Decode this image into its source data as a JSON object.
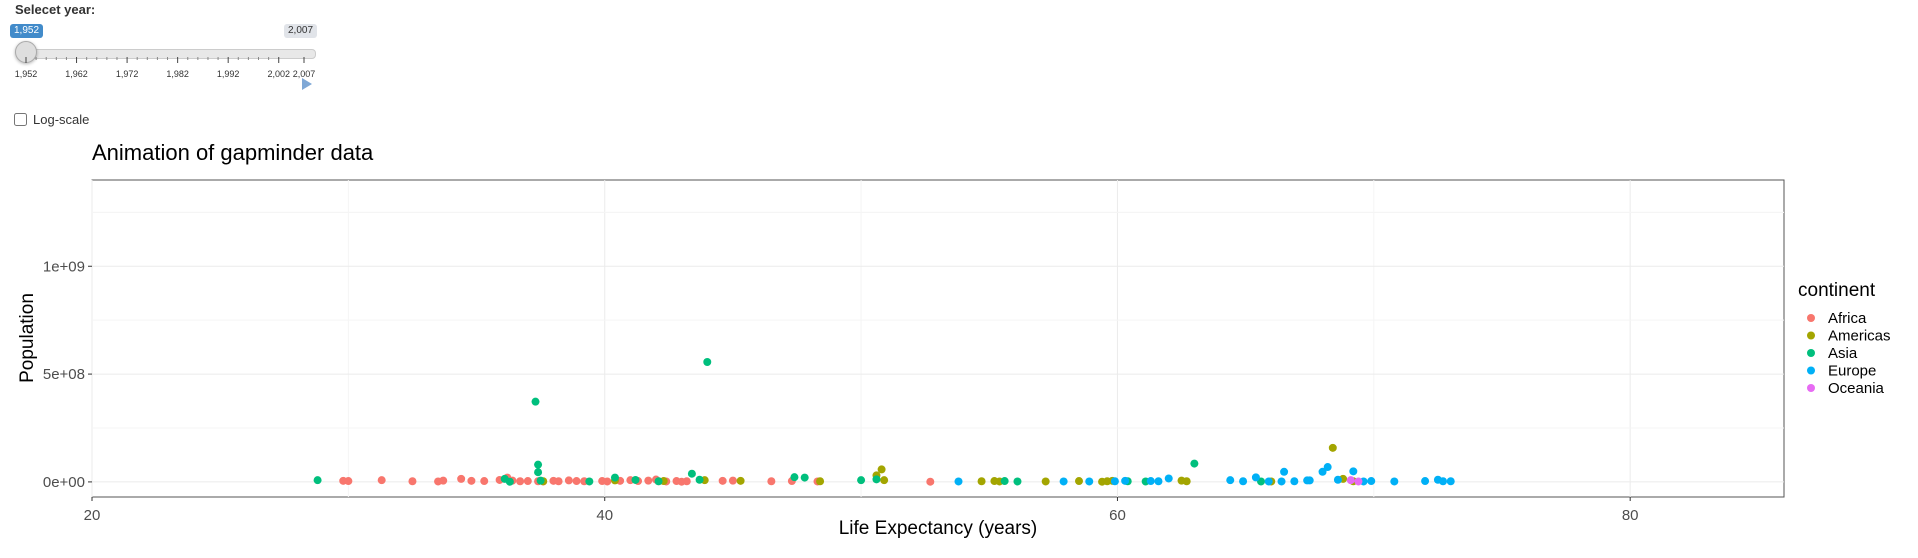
{
  "slider": {
    "label": "Selecet year:",
    "from_value": "1,952",
    "max_value": "2,007",
    "ticks": [
      "1,952",
      "1,962",
      "1,972",
      "1,982",
      "1,992",
      "2,002",
      "2,007"
    ],
    "tick_years": [
      1952,
      1962,
      1972,
      1982,
      1992,
      2002,
      2007
    ],
    "min": 1952,
    "max": 2007,
    "current": 1952,
    "accent": "#428bca"
  },
  "logscale": {
    "label": "Log-scale",
    "checked": false
  },
  "colors": {
    "Africa": "#F8766D",
    "Americas": "#A3A500",
    "Asia": "#00BF7D",
    "Europe": "#00B0F6",
    "Oceania": "#E76BF3"
  },
  "chart_data": {
    "type": "scatter",
    "title": "Animation of gapminder data",
    "xlabel": "Life Expectancy (years)",
    "ylabel": "Population",
    "xlim": [
      20,
      86
    ],
    "ylim": [
      -70000000,
      1400000000
    ],
    "xticks": [
      20,
      40,
      60,
      80
    ],
    "xtick_labels": [
      "20",
      "40",
      "60",
      "80"
    ],
    "yticks": [
      0,
      500000000,
      1000000000
    ],
    "ytick_labels": [
      "0e+00",
      "5e+08",
      "1e+09"
    ],
    "grid": true,
    "legend": {
      "title": "continent",
      "position": "right"
    },
    "series": [
      {
        "name": "Africa",
        "points": [
          [
            29.8,
            5
          ],
          [
            30.0,
            4
          ],
          [
            31.3,
            8
          ],
          [
            32.5,
            3
          ],
          [
            33.5,
            2
          ],
          [
            33.7,
            6
          ],
          [
            34.4,
            14
          ],
          [
            34.8,
            5
          ],
          [
            35.3,
            4
          ],
          [
            35.9,
            9
          ],
          [
            36.2,
            20
          ],
          [
            36.4,
            6
          ],
          [
            36.7,
            3
          ],
          [
            37.0,
            4
          ],
          [
            37.4,
            3
          ],
          [
            37.6,
            2
          ],
          [
            38.0,
            5
          ],
          [
            38.2,
            3
          ],
          [
            38.6,
            7
          ],
          [
            38.9,
            4
          ],
          [
            39.2,
            3
          ],
          [
            39.9,
            4
          ],
          [
            40.1,
            2
          ],
          [
            40.6,
            5
          ],
          [
            41.0,
            8
          ],
          [
            41.3,
            4
          ],
          [
            41.7,
            6
          ],
          [
            42.0,
            11
          ],
          [
            42.1,
            3
          ],
          [
            42.4,
            2
          ],
          [
            42.8,
            4
          ],
          [
            43.0,
            1
          ],
          [
            43.2,
            3
          ],
          [
            44.6,
            5
          ],
          [
            45.0,
            6
          ],
          [
            46.5,
            3
          ],
          [
            47.3,
            4
          ],
          [
            48.3,
            2
          ],
          [
            52.7,
            1
          ]
        ]
      },
      {
        "name": "Americas",
        "points": [
          [
            37.6,
            3
          ],
          [
            40.4,
            7
          ],
          [
            42.3,
            4
          ],
          [
            43.9,
            8
          ],
          [
            45.3,
            5
          ],
          [
            48.4,
            3
          ],
          [
            50.6,
            30
          ],
          [
            50.8,
            58
          ],
          [
            50.9,
            8
          ],
          [
            54.7,
            3
          ],
          [
            55.2,
            4
          ],
          [
            55.4,
            2
          ],
          [
            57.2,
            2
          ],
          [
            58.5,
            4
          ],
          [
            59.4,
            1
          ],
          [
            59.6,
            3
          ],
          [
            59.8,
            5
          ],
          [
            62.5,
            6
          ],
          [
            62.7,
            3
          ],
          [
            66.0,
            2
          ],
          [
            68.4,
            158
          ],
          [
            68.8,
            14
          ],
          [
            69.2,
            3
          ]
        ]
      },
      {
        "name": "Asia",
        "points": [
          [
            28.8,
            8
          ],
          [
            36.1,
            14
          ],
          [
            36.3,
            1
          ],
          [
            37.3,
            372
          ],
          [
            37.4,
            80
          ],
          [
            37.4,
            45
          ],
          [
            37.5,
            6
          ],
          [
            39.4,
            2
          ],
          [
            40.4,
            20
          ],
          [
            41.2,
            9
          ],
          [
            42.1,
            3
          ],
          [
            43.4,
            38
          ],
          [
            43.7,
            10
          ],
          [
            44.0,
            556
          ],
          [
            47.4,
            22
          ],
          [
            47.8,
            20
          ],
          [
            50.0,
            8
          ],
          [
            50.6,
            12
          ],
          [
            55.6,
            4
          ],
          [
            56.1,
            2
          ],
          [
            60.4,
            3
          ],
          [
            61.1,
            2
          ],
          [
            63.0,
            85
          ],
          [
            65.6,
            2
          ]
        ]
      },
      {
        "name": "Europe",
        "points": [
          [
            53.8,
            2
          ],
          [
            57.9,
            2
          ],
          [
            58.9,
            2
          ],
          [
            59.9,
            3
          ],
          [
            60.3,
            5
          ],
          [
            61.3,
            4
          ],
          [
            61.6,
            3
          ],
          [
            62.0,
            16
          ],
          [
            64.4,
            8
          ],
          [
            64.9,
            3
          ],
          [
            65.4,
            21
          ],
          [
            65.9,
            2
          ],
          [
            66.4,
            2
          ],
          [
            66.5,
            47
          ],
          [
            66.9,
            3
          ],
          [
            67.4,
            7
          ],
          [
            67.5,
            7
          ],
          [
            68.0,
            47
          ],
          [
            68.2,
            69
          ],
          [
            68.6,
            10
          ],
          [
            69.2,
            49
          ],
          [
            69.6,
            2
          ],
          [
            69.9,
            4
          ],
          [
            70.8,
            2
          ],
          [
            72.0,
            4
          ],
          [
            72.5,
            10
          ],
          [
            72.7,
            3
          ],
          [
            73.0,
            3
          ]
        ]
      },
      {
        "name": "Oceania",
        "points": [
          [
            69.1,
            8
          ],
          [
            69.4,
            2
          ]
        ]
      }
    ]
  }
}
